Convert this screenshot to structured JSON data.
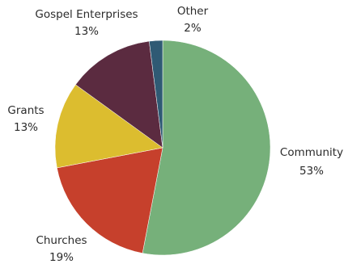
{
  "chart_data": {
    "type": "pie",
    "slices": [
      {
        "name": "Community",
        "value": 53,
        "pct_label": "53%",
        "color": "#76b07a"
      },
      {
        "name": "Churches",
        "value": 19,
        "pct_label": "19%",
        "color": "#c6402c"
      },
      {
        "name": "Grants",
        "value": 13,
        "pct_label": "13%",
        "color": "#dcbd2f"
      },
      {
        "name": "Gospel Enterprises",
        "value": 13,
        "pct_label": "13%",
        "color": "#5b2b40"
      },
      {
        "name": "Other",
        "value": 2,
        "pct_label": "2%",
        "color": "#2f5a74"
      }
    ]
  }
}
